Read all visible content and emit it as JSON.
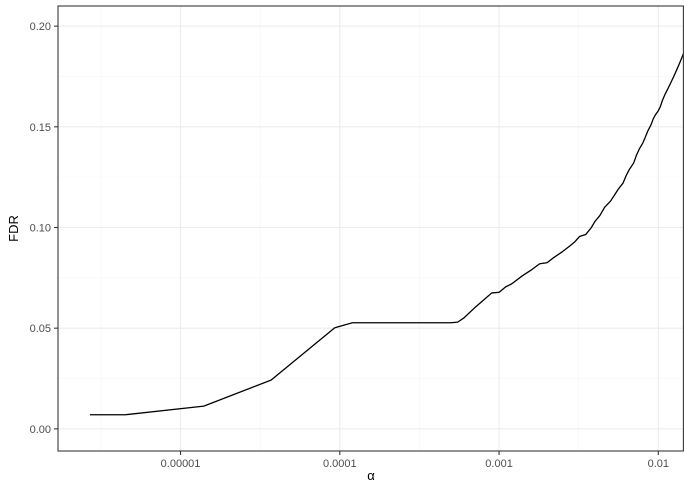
{
  "chart_data": {
    "type": "line",
    "title": "",
    "xlabel": "α",
    "ylabel": "FDR",
    "x_scale": "log10",
    "xlim": [
      1.7e-06,
      0.0145
    ],
    "ylim": [
      -0.011,
      0.21
    ],
    "x_ticks": [
      {
        "value": 1e-05,
        "label": "0.00001"
      },
      {
        "value": 0.0001,
        "label": "0.0001"
      },
      {
        "value": 0.001,
        "label": "0.001"
      },
      {
        "value": 0.01,
        "label": "0.01"
      }
    ],
    "y_ticks": [
      {
        "value": 0.0,
        "label": "0.00"
      },
      {
        "value": 0.05,
        "label": "0.05"
      },
      {
        "value": 0.1,
        "label": "0.10"
      },
      {
        "value": 0.15,
        "label": "0.15"
      },
      {
        "value": 0.2,
        "label": "0.20"
      }
    ],
    "grid": true,
    "legend": "none",
    "colors": {
      "line": "#000000",
      "grid": "#ebebeb",
      "border": "#333333"
    },
    "series": [
      {
        "x": [
          2.7e-06,
          4.5e-06,
          1.4e-05,
          3.7e-05,
          9.3e-05,
          0.00012,
          0.0002,
          0.0003,
          0.0004,
          0.0005,
          0.00055,
          0.0006,
          0.0007,
          0.0008,
          0.0009,
          0.001,
          0.0011,
          0.0012,
          0.0014,
          0.0016,
          0.0018,
          0.002,
          0.0022,
          0.0025,
          0.0028,
          0.003,
          0.0032,
          0.0035,
          0.0038,
          0.004,
          0.0043,
          0.0046,
          0.005,
          0.0053,
          0.0056,
          0.006,
          0.0063,
          0.0066,
          0.007,
          0.0073,
          0.0076,
          0.008,
          0.0083,
          0.0086,
          0.009,
          0.0093,
          0.0096,
          0.01,
          0.0103,
          0.0106,
          0.011,
          0.0115,
          0.012,
          0.0125,
          0.013,
          0.0135,
          0.014,
          0.0145
        ],
        "y": [
          0.007,
          0.007,
          0.0113,
          0.0242,
          0.0502,
          0.0527,
          0.0527,
          0.0527,
          0.0527,
          0.0527,
          0.053,
          0.055,
          0.06,
          0.064,
          0.0675,
          0.0678,
          0.0705,
          0.072,
          0.076,
          0.079,
          0.082,
          0.0825,
          0.085,
          0.088,
          0.091,
          0.093,
          0.0955,
          0.0965,
          0.1,
          0.103,
          0.106,
          0.11,
          0.113,
          0.116,
          0.119,
          0.122,
          0.126,
          0.129,
          0.132,
          0.136,
          0.139,
          0.142,
          0.145,
          0.148,
          0.151,
          0.154,
          0.156,
          0.158,
          0.16,
          0.163,
          0.166,
          0.169,
          0.172,
          0.175,
          0.178,
          0.181,
          0.184,
          0.187
        ]
      }
    ]
  }
}
